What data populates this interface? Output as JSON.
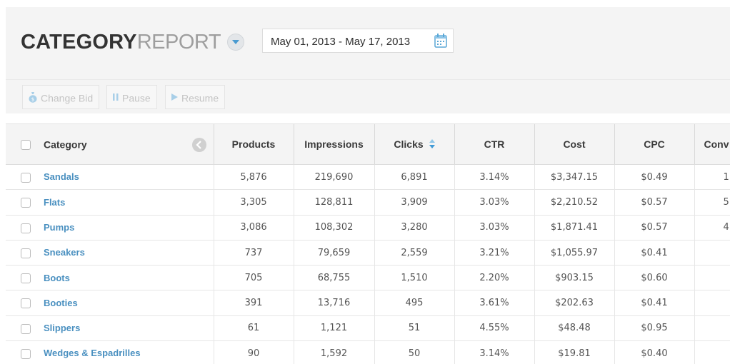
{
  "header": {
    "title_bold": "CATEGORY",
    "title_light": "REPORT",
    "date_range": "May 01, 2013 - May 17, 2013"
  },
  "toolbar": {
    "change_bid": "Change Bid",
    "pause": "Pause",
    "resume": "Resume"
  },
  "table": {
    "columns": [
      "Category",
      "Products",
      "Impressions",
      "Clicks",
      "CTR",
      "Cost",
      "CPC",
      "Conv"
    ],
    "rows": [
      {
        "category": "Sandals",
        "products": "5,876",
        "impressions": "219,690",
        "clicks": "6,891",
        "ctr": "3.14%",
        "cost": "$3,347.15",
        "cpc": "$0.49",
        "conv": "1"
      },
      {
        "category": "Flats",
        "products": "3,305",
        "impressions": "128,811",
        "clicks": "3,909",
        "ctr": "3.03%",
        "cost": "$2,210.52",
        "cpc": "$0.57",
        "conv": "5"
      },
      {
        "category": "Pumps",
        "products": "3,086",
        "impressions": "108,302",
        "clicks": "3,280",
        "ctr": "3.03%",
        "cost": "$1,871.41",
        "cpc": "$0.57",
        "conv": "4"
      },
      {
        "category": "Sneakers",
        "products": "737",
        "impressions": "79,659",
        "clicks": "2,559",
        "ctr": "3.21%",
        "cost": "$1,055.97",
        "cpc": "$0.41",
        "conv": ""
      },
      {
        "category": "Boots",
        "products": "705",
        "impressions": "68,755",
        "clicks": "1,510",
        "ctr": "2.20%",
        "cost": "$903.15",
        "cpc": "$0.60",
        "conv": ""
      },
      {
        "category": "Booties",
        "products": "391",
        "impressions": "13,716",
        "clicks": "495",
        "ctr": "3.61%",
        "cost": "$202.63",
        "cpc": "$0.41",
        "conv": ""
      },
      {
        "category": "Slippers",
        "products": "61",
        "impressions": "1,121",
        "clicks": "51",
        "ctr": "4.55%",
        "cost": "$48.48",
        "cpc": "$0.95",
        "conv": ""
      },
      {
        "category": "Wedges & Espadrilles",
        "products": "90",
        "impressions": "1,592",
        "clicks": "50",
        "ctr": "3.14%",
        "cost": "$19.81",
        "cpc": "$0.40",
        "conv": ""
      }
    ]
  },
  "icons": {
    "title_toggle": "chevron-down-icon",
    "date_picker": "calendar-icon",
    "change_bid": "money-bag-icon",
    "pause": "pause-icon",
    "resume": "play-icon",
    "collapse": "chevron-left-icon",
    "sort": "sort-icon"
  },
  "colors": {
    "accent": "#4a90c0",
    "header_bg": "#f4f4f4",
    "toggle_arrow": "#4a9bd1",
    "disabled_text": "#c4c4c4"
  }
}
